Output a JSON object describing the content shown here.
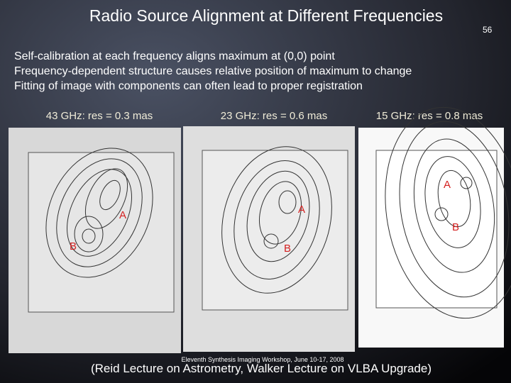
{
  "header": {
    "title": "Radio Source Alignment at Different Frequencies",
    "page_number": "56"
  },
  "bullets": [
    "Self-calibration at each frequency aligns maximum at (0,0) point",
    "Frequency-dependent structure causes relative position of maximum to change",
    "Fitting of image with components can often lead to proper registration"
  ],
  "panels": [
    {
      "label": "43 GHz: res = 0.3 mas",
      "markers": [
        "A",
        "B"
      ]
    },
    {
      "label": "23 GHz: res = 0.6 mas",
      "markers": [
        "A",
        "B"
      ]
    },
    {
      "label": "15 GHz: res = 0.8 mas",
      "markers": [
        "A",
        "B"
      ]
    }
  ],
  "footer": {
    "workshop": "Eleventh Synthesis Imaging Workshop, June 10-17, 2008",
    "credit": "(Reid Lecture on Astrometry, Walker Lecture on VLBA Upgrade)"
  }
}
